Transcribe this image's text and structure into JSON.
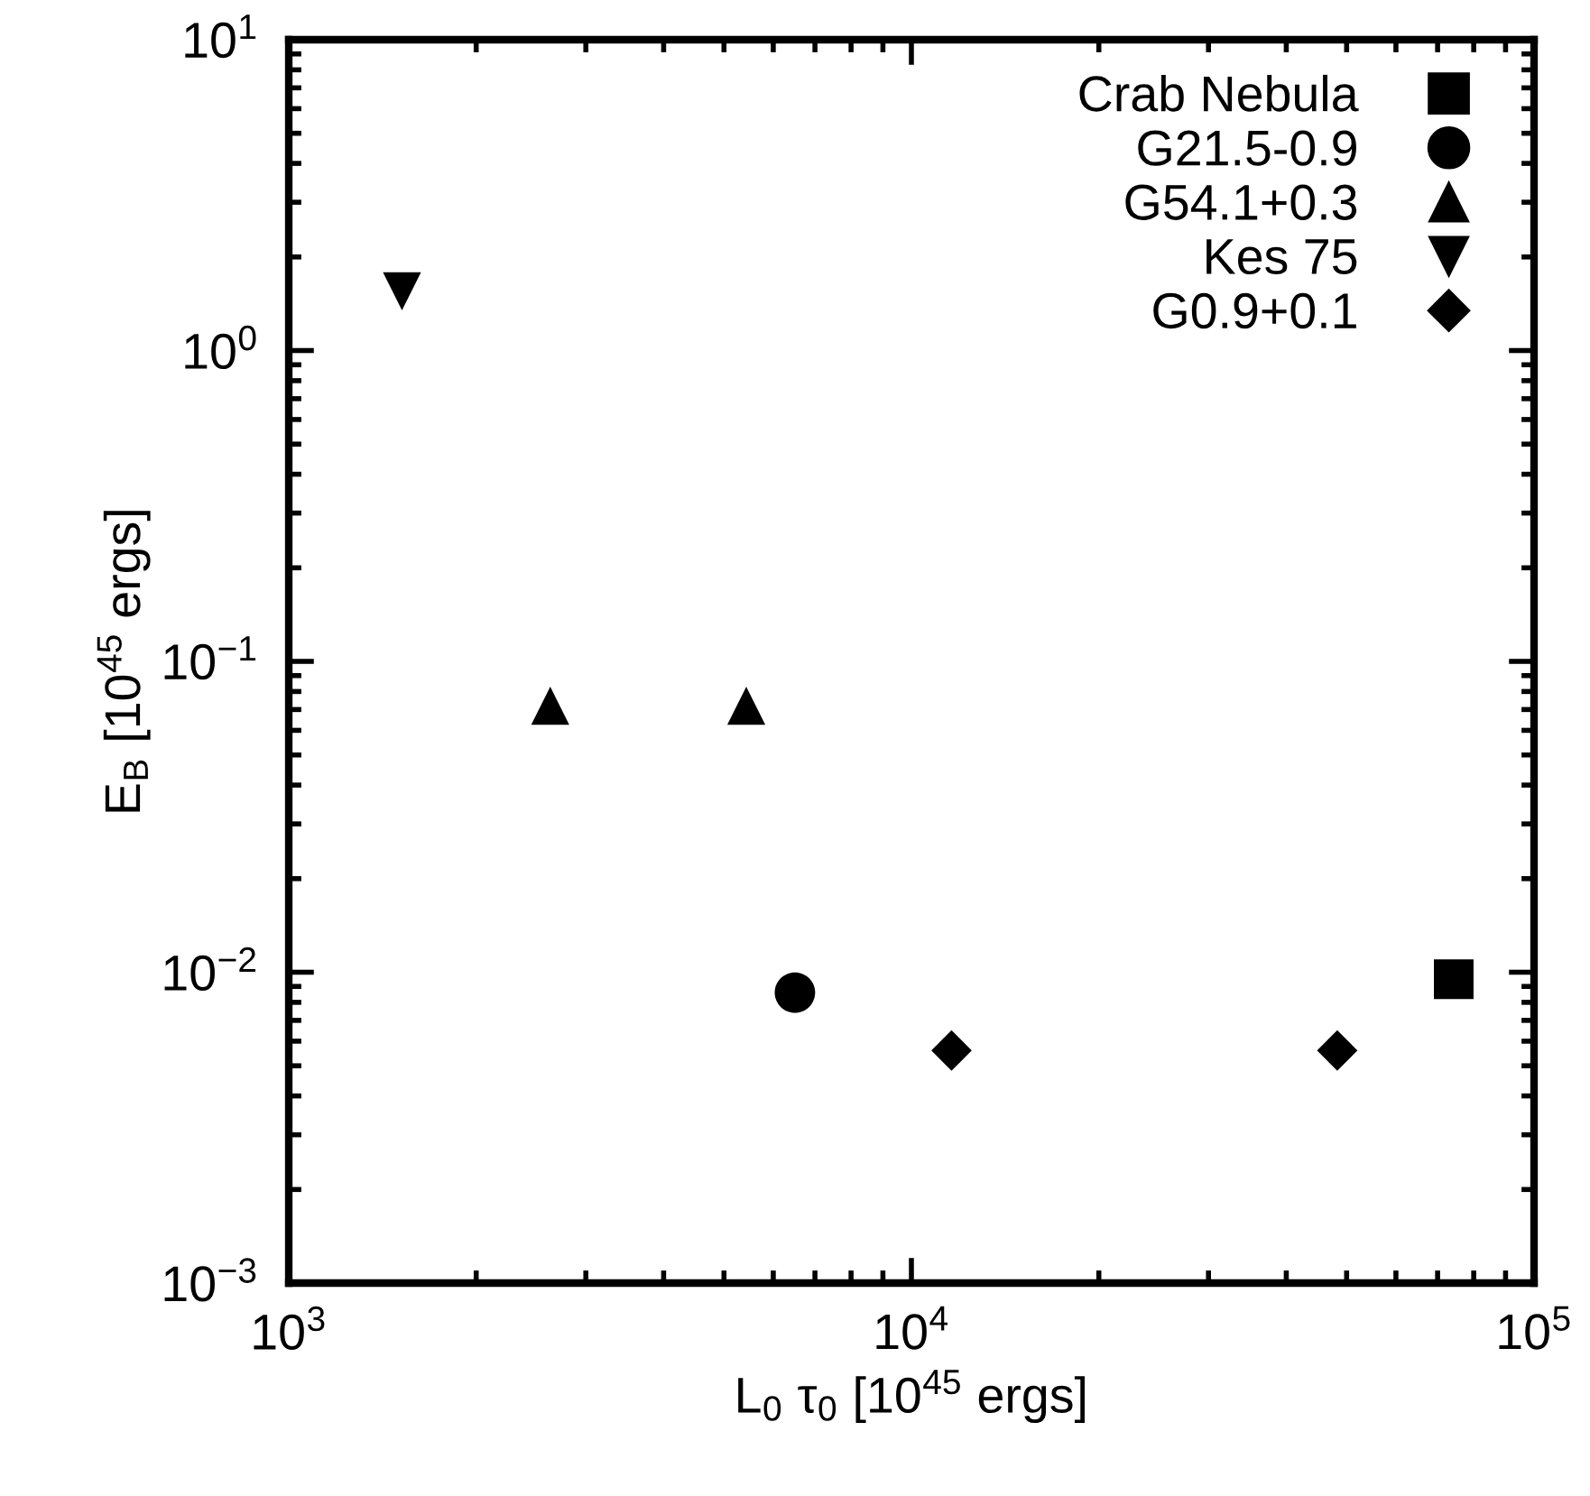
{
  "chart_data": {
    "type": "scatter",
    "xlabel": "L$_{0}$ τ$_{0}$ [10$^{45}$ ergs]",
    "ylabel": "E$_{B}$ [10$^{45}$ ergs]",
    "log": "xy",
    "xlim": [
      1000,
      100000
    ],
    "ylim": [
      0.001,
      10
    ],
    "xticks": [
      {
        "value": 1000,
        "label": "10$^{3}$"
      },
      {
        "value": 10000,
        "label": "10$^{4}$"
      },
      {
        "value": 100000,
        "label": "10$^{5}$"
      }
    ],
    "yticks": [
      {
        "value": 0.001,
        "label": "10$^{−3}$"
      },
      {
        "value": 0.01,
        "label": "10$^{−2}$"
      },
      {
        "value": 0.1,
        "label": "10$^{−1}$"
      },
      {
        "value": 1,
        "label": "10$^{0}$"
      },
      {
        "value": 10,
        "label": "10$^{1}$"
      }
    ],
    "grid": false,
    "legend": "top right",
    "series": [
      {
        "name": "Crab Nebula",
        "color": "#000000",
        "marker": "square",
        "x": [
          74300
        ],
        "values": [
          0.0095
        ]
      },
      {
        "name": "G21.5-0.9",
        "color": "#000000",
        "marker": "circle",
        "x": [
          6500
        ],
        "values": [
          0.0086
        ]
      },
      {
        "name": "G54.1+0.3",
        "color": "#000000",
        "marker": "triangle",
        "x": [
          2630,
          5430
        ],
        "values": [
          0.072,
          0.072
        ]
      },
      {
        "name": "Kes 75",
        "color": "#000000",
        "marker": "triangle_down",
        "x": [
          1520
        ],
        "values": [
          1.55
        ]
      },
      {
        "name": "G0.9+0.1",
        "color": "#000000",
        "marker": "diamond",
        "x": [
          11600,
          48300
        ],
        "values": [
          0.0056,
          0.0056
        ]
      }
    ]
  }
}
